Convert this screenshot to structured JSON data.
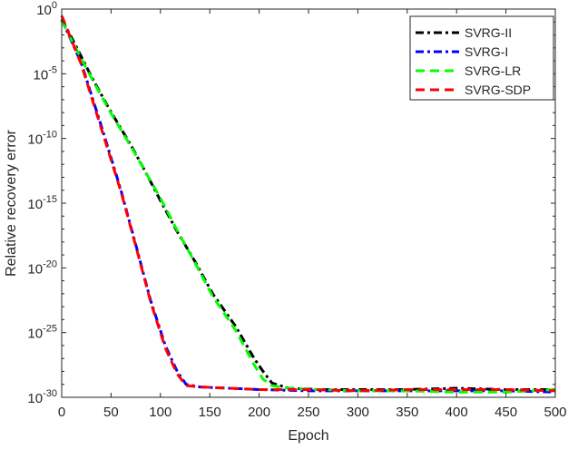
{
  "chart_data": {
    "type": "line",
    "title": "",
    "xlabel": "Epoch",
    "ylabel": "Relative recovery error",
    "xlim": [
      0,
      500
    ],
    "ylim_log10": [
      -30,
      0
    ],
    "yscale": "log",
    "xticks": [
      "0",
      "50",
      "100",
      "150",
      "200",
      "250",
      "300",
      "350",
      "400",
      "450",
      "500"
    ],
    "yticks": [
      {
        "base": "10",
        "exp": "0"
      },
      {
        "base": "10",
        "exp": "-5"
      },
      {
        "base": "10",
        "exp": "-10"
      },
      {
        "base": "10",
        "exp": "-15"
      },
      {
        "base": "10",
        "exp": "-20"
      },
      {
        "base": "10",
        "exp": "-25"
      },
      {
        "base": "10",
        "exp": "-30"
      }
    ],
    "grid": false,
    "legend_position": "top-right",
    "series": [
      {
        "name": "SVRG-II",
        "color": "#000000",
        "dash": "dash-dot",
        "x": [
          0,
          10,
          30,
          48,
          70,
          85,
          100,
          117,
          135,
          153,
          176,
          195,
          204,
          213,
          230,
          260,
          300,
          350,
          400,
          450,
          500
        ],
        "log10_y": [
          -0.8,
          -2.2,
          -5.2,
          -7.7,
          -10.5,
          -12.6,
          -14.8,
          -17.2,
          -19.5,
          -22,
          -24.5,
          -27,
          -28,
          -28.9,
          -29.3,
          -29.4,
          -29.4,
          -29.4,
          -29.3,
          -29.4,
          -29.4
        ]
      },
      {
        "name": "SVRG-I",
        "color": "#0000ff",
        "dash": "dash-dot",
        "x": [
          0,
          20,
          40,
          60,
          75,
          90,
          105,
          117,
          126,
          140,
          200,
          250,
          300,
          350,
          400,
          450,
          500
        ],
        "log10_y": [
          -0.8,
          -4.2,
          -9,
          -14,
          -18.2,
          -22.5,
          -26,
          -28,
          -29,
          -29.2,
          -29.4,
          -29.5,
          -29.5,
          -29.5,
          -29.5,
          -29.5,
          -29.6
        ]
      },
      {
        "name": "SVRG-LR",
        "color": "#00ff00",
        "dash": "dashed",
        "x": [
          0,
          10,
          30,
          48,
          70,
          85,
          100,
          117,
          135,
          153,
          176,
          195,
          204,
          213,
          230,
          260,
          300,
          350,
          400,
          450,
          500
        ],
        "log10_y": [
          -0.9,
          -2.4,
          -5.3,
          -7.8,
          -10.6,
          -12.6,
          -14.6,
          -17.1,
          -19.6,
          -22.2,
          -24.8,
          -27.5,
          -28.6,
          -29.1,
          -29.3,
          -29.4,
          -29.5,
          -29.5,
          -29.6,
          -29.6,
          -29.4
        ]
      },
      {
        "name": "SVRG-SDP",
        "color": "#ff0000",
        "dash": "dashed",
        "x": [
          0,
          20,
          40,
          60,
          75,
          90,
          105,
          117,
          126,
          140,
          200,
          250,
          300,
          350,
          400,
          450,
          500
        ],
        "log10_y": [
          -0.5,
          -4.3,
          -9.2,
          -14.1,
          -18.3,
          -22.6,
          -26.2,
          -28.2,
          -29.1,
          -29.2,
          -29.4,
          -29.4,
          -29.5,
          -29.4,
          -29.4,
          -29.4,
          -29.5
        ]
      }
    ]
  }
}
